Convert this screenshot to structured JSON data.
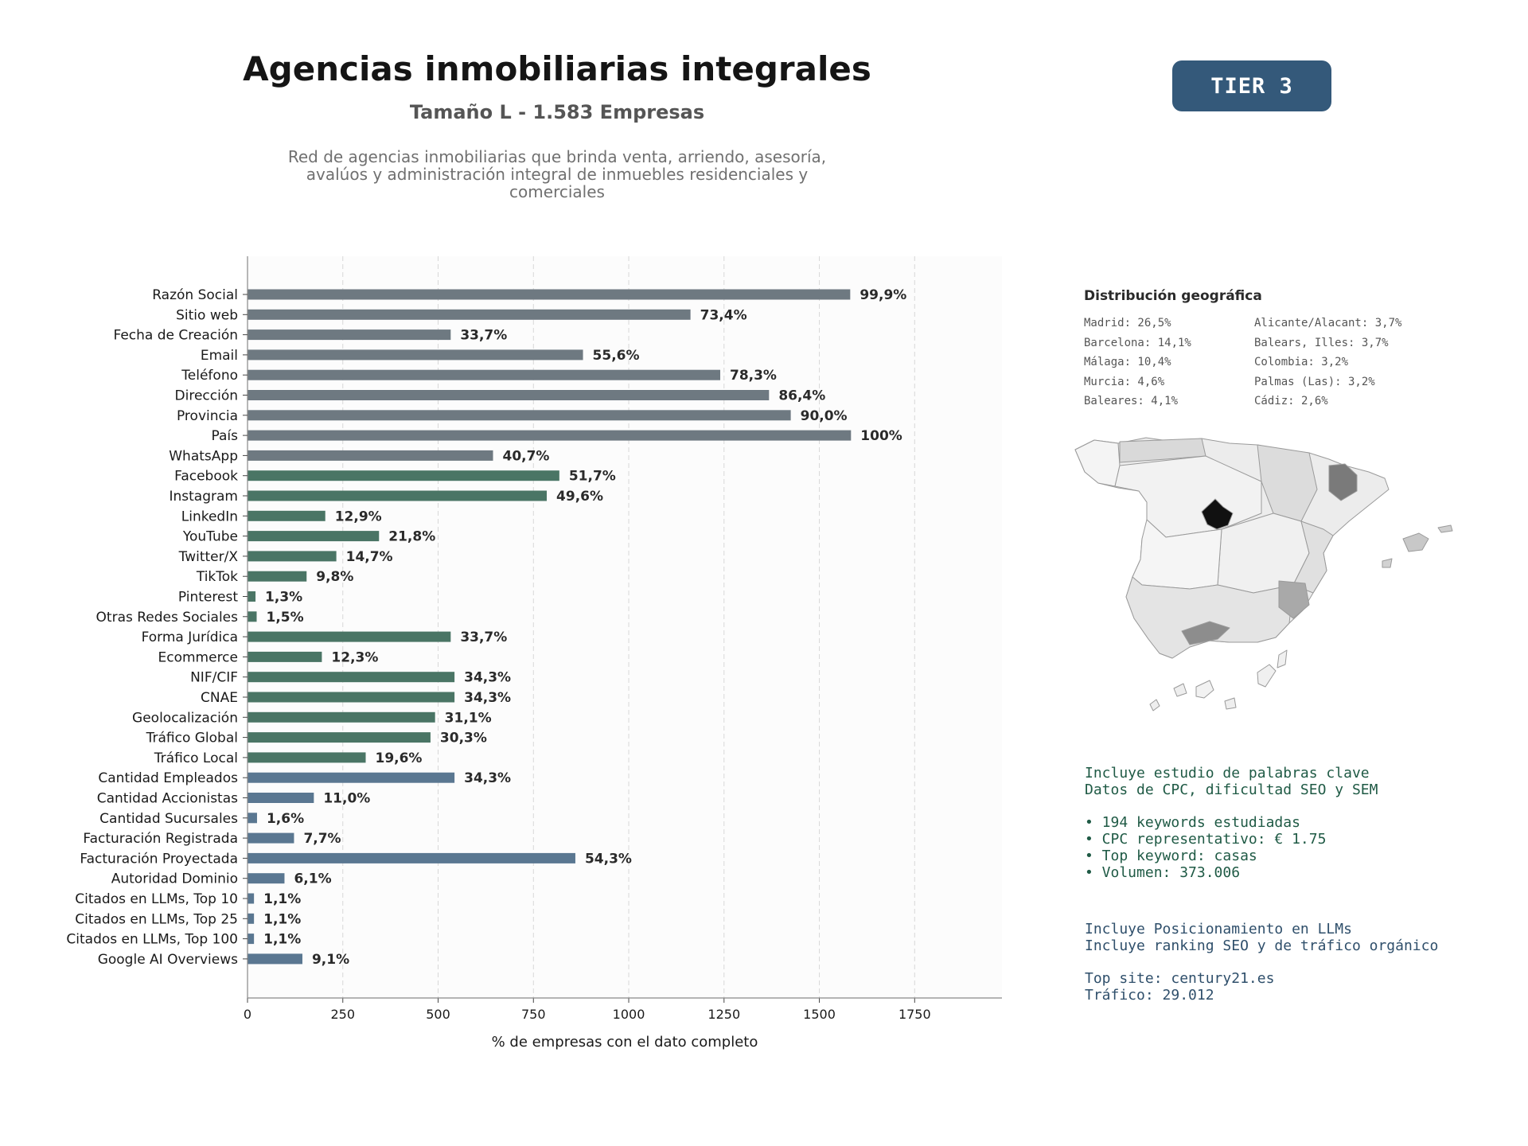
{
  "header": {
    "title": "Agencias inmobiliarias integrales",
    "subtitle": "Tamaño L - 1.583 Empresas",
    "description": "Red de agencias inmobiliarias que brinda venta, arriendo, asesoría, avalúos y administración integral de inmuebles residenciales y comerciales",
    "tier": "TIER 3"
  },
  "chart_data": {
    "type": "bar",
    "orientation": "horizontal",
    "xlabel": "% de empresas con el dato completo",
    "ylabel": "",
    "xlim": [
      0,
      1979
    ],
    "xticks": [
      0,
      250,
      500,
      750,
      1000,
      1250,
      1500,
      1750
    ],
    "grid": "vertical dashed",
    "categories": [
      "Razón Social",
      "Sitio web",
      "Fecha de Creación",
      "Email",
      "Teléfono",
      "Dirección",
      "Provincia",
      "País",
      "WhatsApp",
      "Facebook",
      "Instagram",
      "LinkedIn",
      "YouTube",
      "Twitter/X",
      "TikTok",
      "Pinterest",
      "Otras Redes Sociales",
      "Forma Jurídica",
      "Ecommerce",
      "NIF/CIF",
      "CNAE",
      "Geolocalización",
      "Tráfico Global",
      "Tráfico Local",
      "Cantidad Empleados",
      "Cantidad Accionistas",
      "Cantidad Sucursales",
      "Facturación Registrada",
      "Facturación Proyectada",
      "Autoridad Dominio",
      "Citados en LLMs, Top 10",
      "Citados en LLMs, Top 25",
      "Citados en LLMs, Top 100",
      "Google AI Overviews"
    ],
    "values": [
      1581,
      1162,
      533,
      880,
      1240,
      1368,
      1425,
      1583,
      644,
      818,
      785,
      204,
      345,
      233,
      155,
      21,
      24,
      533,
      195,
      543,
      543,
      492,
      480,
      310,
      543,
      174,
      25,
      122,
      860,
      97,
      17,
      17,
      17,
      144
    ],
    "labels": [
      "99,9%",
      "73,4%",
      "33,7%",
      "55,6%",
      "78,3%",
      "86,4%",
      "90,0%",
      "100%",
      "40,7%",
      "51,7%",
      "49,6%",
      "12,9%",
      "21,8%",
      "14,7%",
      "9,8%",
      "1,3%",
      "1,5%",
      "33,7%",
      "12,3%",
      "34,3%",
      "34,3%",
      "31,1%",
      "30,3%",
      "19,6%",
      "34,3%",
      "11,0%",
      "1,6%",
      "7,7%",
      "54,3%",
      "6,1%",
      "1,1%",
      "1,1%",
      "1,1%",
      "9,1%"
    ],
    "groups": [
      9,
      15,
      10
    ],
    "colors": [
      "#6e7981",
      "#4a7565",
      "#5a7791"
    ]
  },
  "geo": {
    "title": "Distribución geográfica",
    "items": [
      "Madrid: 26,5%",
      "Alicante/Alacant: 3,7%",
      "Barcelona: 14,1%",
      "Balears, Illes: 3,7%",
      "Málaga: 10,4%",
      "Colombia: 3,2%",
      "Murcia: 4,6%",
      "Palmas (Las): 3,2%",
      "Baleares: 4,1%",
      "Cádiz: 2,6%"
    ]
  },
  "seo": {
    "line1": "Incluye estudio de palabras clave",
    "line2": "Datos de CPC, dificultad SEO y SEM",
    "bullet1": "• 194 keywords estudiadas",
    "bullet2": "• CPC representativo: € 1.75",
    "bullet3": "• Top keyword: casas",
    "bullet4": "• Volumen: 373.006"
  },
  "llm": {
    "line1": "Incluye Posicionamiento en LLMs",
    "line2": "Incluye ranking SEO y de tráfico orgánico",
    "top_site": "Top site: century21.es",
    "traffic": "Tráfico: 29.012"
  }
}
